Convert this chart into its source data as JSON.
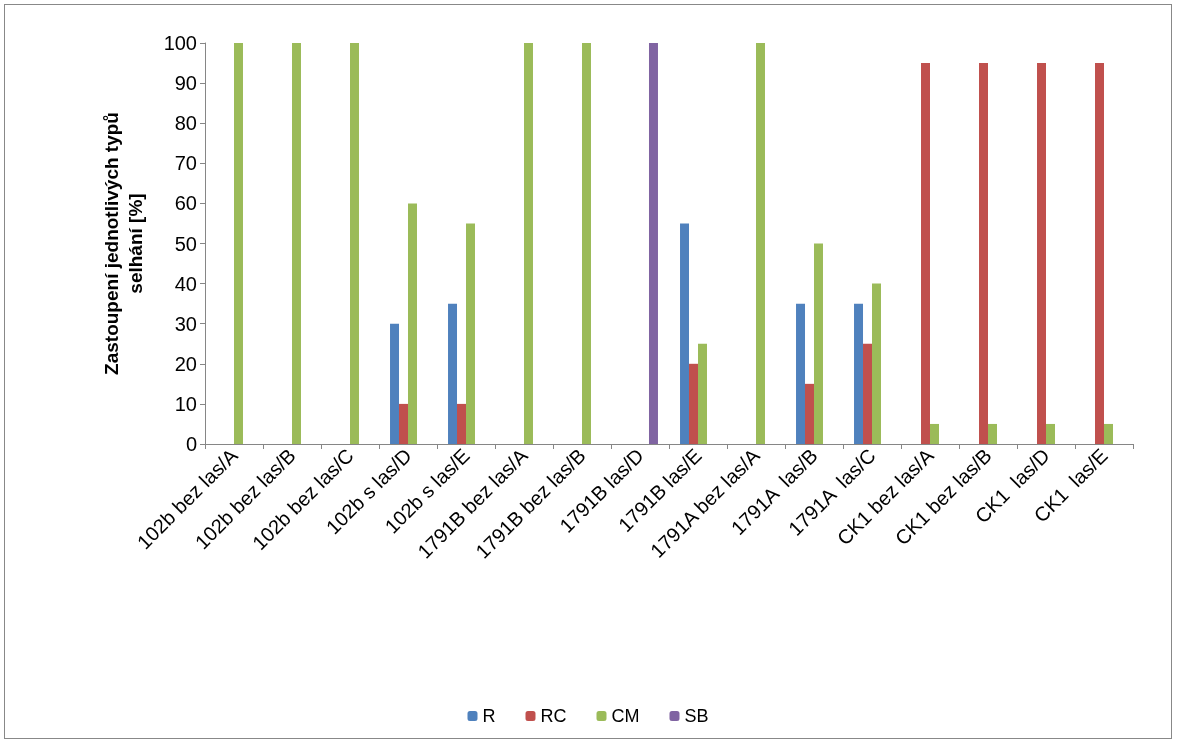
{
  "chart_data": {
    "type": "bar",
    "ylabel": "Zastoupení jednotlivých typů\nselhání [%]",
    "categories": [
      "102b bez las/A",
      "102b bez las/B",
      "102b bez las/C",
      "102b s las/D",
      "102b s las/E",
      "1791B bez las/A",
      "1791B bez las/B",
      "1791B las/D",
      "1791B las/E",
      "1791A bez las/A",
      "1791A  las/B",
      "1791A  las/C",
      "CK1 bez las/A",
      "CK1 bez las/B",
      "CK1  las/D",
      "CK1  las/E"
    ],
    "series": [
      {
        "name": "R",
        "color": "#4f81bd",
        "values": [
          null,
          null,
          null,
          30,
          35,
          null,
          null,
          null,
          55,
          null,
          35,
          35,
          null,
          null,
          null,
          null
        ]
      },
      {
        "name": "RC",
        "color": "#c0504d",
        "values": [
          null,
          null,
          null,
          10,
          10,
          null,
          null,
          null,
          20,
          null,
          15,
          25,
          95,
          95,
          95,
          95
        ]
      },
      {
        "name": "CM",
        "color": "#9bbb59",
        "values": [
          100,
          100,
          100,
          60,
          55,
          100,
          100,
          null,
          25,
          100,
          50,
          40,
          5,
          5,
          5,
          5
        ]
      },
      {
        "name": "SB",
        "color": "#8064a2",
        "values": [
          null,
          null,
          null,
          null,
          null,
          null,
          null,
          100,
          null,
          null,
          null,
          null,
          null,
          null,
          null,
          null
        ]
      }
    ],
    "ylim": [
      0,
      100
    ],
    "yticks": [
      0,
      10,
      20,
      30,
      40,
      50,
      60,
      70,
      80,
      90,
      100
    ],
    "grid": false,
    "legend": "bottom"
  }
}
